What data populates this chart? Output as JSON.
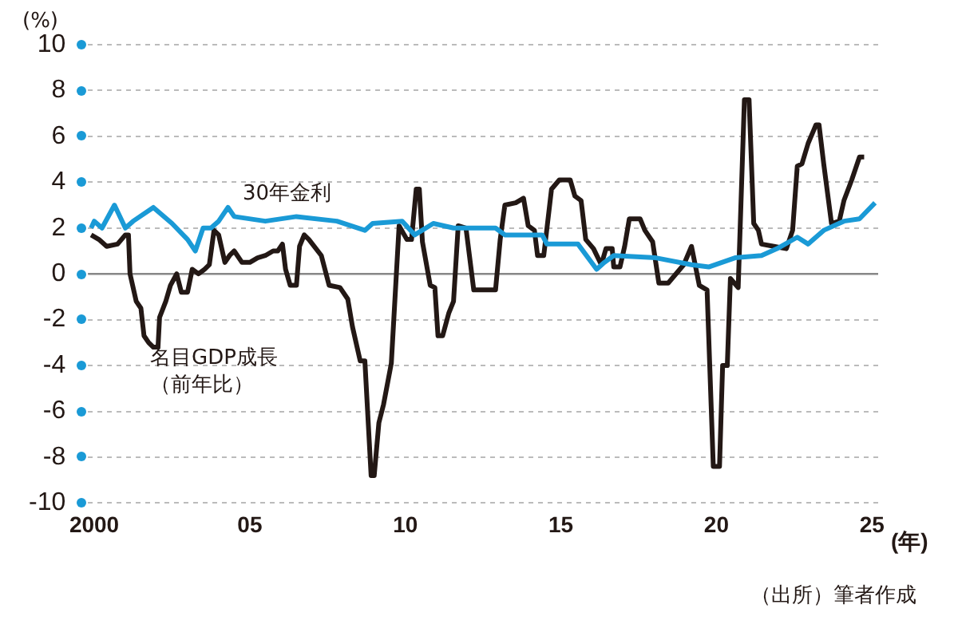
{
  "chart_data": {
    "type": "line",
    "ylabel": "(%)",
    "xlabel": "(年)",
    "xlim": [
      1999.8,
      2025.2
    ],
    "xticks": [
      {
        "value": 2000,
        "label": "2000"
      },
      {
        "value": 2005,
        "label": "05"
      },
      {
        "value": 2010,
        "label": "10"
      },
      {
        "value": 2015,
        "label": "15"
      },
      {
        "value": 2020,
        "label": "20"
      },
      {
        "value": 2025,
        "label": "25"
      }
    ],
    "ylim": [
      -10,
      10
    ],
    "yticks": [
      -10,
      -8,
      -6,
      -4,
      -2,
      0,
      2,
      4,
      6,
      8,
      10
    ],
    "grid": "y",
    "marker": "none",
    "ref_lines": [
      {
        "axis": "y",
        "value": 0,
        "color": "#888888"
      }
    ],
    "annotations": [
      "（出所）筆者作成"
    ],
    "series": [
      {
        "name": "30年金利",
        "color": "#1a9ad6",
        "x": [
          1999.9,
          2000.0,
          2000.25,
          2000.65,
          2001.0,
          2001.25,
          2001.9,
          2002.5,
          2003.0,
          2003.25,
          2003.5,
          2003.75,
          2004.0,
          2004.3,
          2004.5,
          2005.5,
          2006.5,
          2007.8,
          2008.7,
          2008.95,
          2009.9,
          2010.3,
          2010.9,
          2011.55,
          2012.9,
          2013.2,
          2014.4,
          2014.55,
          2015.55,
          2016.15,
          2016.4,
          2016.7,
          2018.05,
          2019.2,
          2019.75,
          2020.6,
          2021.45,
          2021.95,
          2022.6,
          2022.95,
          2023.45,
          2024.1,
          2024.6,
          2025.1
        ],
        "values": [
          2.0,
          2.3,
          2.0,
          3.0,
          2.0,
          2.3,
          2.9,
          2.2,
          1.5,
          1.0,
          2.0,
          2.0,
          2.3,
          2.9,
          2.5,
          2.3,
          2.5,
          2.3,
          1.9,
          2.2,
          2.3,
          1.7,
          2.2,
          2.0,
          2.0,
          1.7,
          1.7,
          1.3,
          1.3,
          0.2,
          0.5,
          0.8,
          0.7,
          0.4,
          0.3,
          0.7,
          0.8,
          1.1,
          1.6,
          1.3,
          1.9,
          2.3,
          2.4,
          3.1
        ]
      },
      {
        "name": "名目GDP成長（前年比）",
        "color": "#231815",
        "x": [
          1999.9,
          2000.15,
          2000.4,
          2000.75,
          2001.0,
          2001.1,
          2001.15,
          2001.35,
          2001.5,
          2001.6,
          2001.75,
          2001.9,
          2002.05,
          2002.1,
          2002.3,
          2002.45,
          2002.65,
          2002.8,
          2003.0,
          2003.15,
          2003.35,
          2003.55,
          2003.7,
          2003.85,
          2004.0,
          2004.2,
          2004.35,
          2004.5,
          2004.75,
          2005.0,
          2005.25,
          2005.5,
          2005.75,
          2005.9,
          2006.05,
          2006.15,
          2006.3,
          2006.5,
          2006.6,
          2006.75,
          2006.9,
          2007.3,
          2007.55,
          2007.9,
          2008.15,
          2008.3,
          2008.55,
          2008.7,
          2008.9,
          2009.0,
          2009.15,
          2009.3,
          2009.55,
          2009.8,
          2010.05,
          2010.2,
          2010.35,
          2010.45,
          2010.55,
          2010.8,
          2010.95,
          2011.05,
          2011.2,
          2011.4,
          2011.55,
          2011.7,
          2011.95,
          2012.2,
          2012.55,
          2012.9,
          2013.05,
          2013.2,
          2013.55,
          2013.8,
          2013.95,
          2014.15,
          2014.25,
          2014.45,
          2014.7,
          2014.95,
          2015.3,
          2015.45,
          2015.65,
          2015.8,
          2016.05,
          2016.3,
          2016.45,
          2016.65,
          2016.7,
          2016.9,
          2017.05,
          2017.2,
          2017.55,
          2017.7,
          2017.95,
          2018.15,
          2018.45,
          2018.7,
          2018.95,
          2019.2,
          2019.45,
          2019.7,
          2019.9,
          2020.1,
          2020.2,
          2020.35,
          2020.45,
          2020.7,
          2020.9,
          2021.05,
          2021.2,
          2021.35,
          2021.45,
          2021.85,
          2022.25,
          2022.45,
          2022.6,
          2022.75,
          2022.95,
          2023.2,
          2023.3,
          2023.45,
          2023.7,
          2023.95,
          2024.1,
          2024.35,
          2024.6,
          2024.75
        ],
        "values": [
          1.7,
          1.5,
          1.2,
          1.3,
          1.7,
          1.7,
          0,
          -1.2,
          -1.5,
          -2.7,
          -3.0,
          -3.2,
          -3.2,
          -1.9,
          -1.2,
          -0.5,
          0,
          -0.8,
          -0.8,
          0.2,
          0,
          0.2,
          0.4,
          1.9,
          1.7,
          0.5,
          0.8,
          1.0,
          0.5,
          0.5,
          0.7,
          0.8,
          1.0,
          1.0,
          1.3,
          0.2,
          -0.5,
          -0.5,
          1.2,
          1.7,
          1.5,
          0.8,
          -0.5,
          -0.6,
          -1.1,
          -2.3,
          -3.8,
          -3.8,
          -8.8,
          -8.8,
          -6.5,
          -5.7,
          -3.9,
          2.1,
          1.5,
          1.5,
          3.7,
          3.7,
          1.4,
          -0.5,
          -0.6,
          -2.7,
          -2.7,
          -1.7,
          -1.2,
          2.1,
          2.0,
          -0.7,
          -0.7,
          -0.7,
          1.5,
          3.0,
          3.1,
          3.3,
          2.1,
          1.9,
          0.8,
          0.8,
          3.7,
          4.1,
          4.1,
          3.4,
          3.2,
          1.5,
          1.1,
          0.4,
          1.1,
          1.1,
          0.3,
          0.3,
          1.2,
          2.4,
          2.4,
          1.9,
          1.4,
          -0.4,
          -0.4,
          0,
          0.4,
          1.2,
          -0.5,
          -0.7,
          -8.4,
          -8.4,
          -4.0,
          -4.0,
          -0.2,
          -0.6,
          7.6,
          7.6,
          2.2,
          1.9,
          1.3,
          1.2,
          1.1,
          1.9,
          4.7,
          4.8,
          5.7,
          6.5,
          6.5,
          4.8,
          2.2,
          2.3,
          3.2,
          4.1,
          5.1,
          5.1
        ]
      }
    ]
  }
}
